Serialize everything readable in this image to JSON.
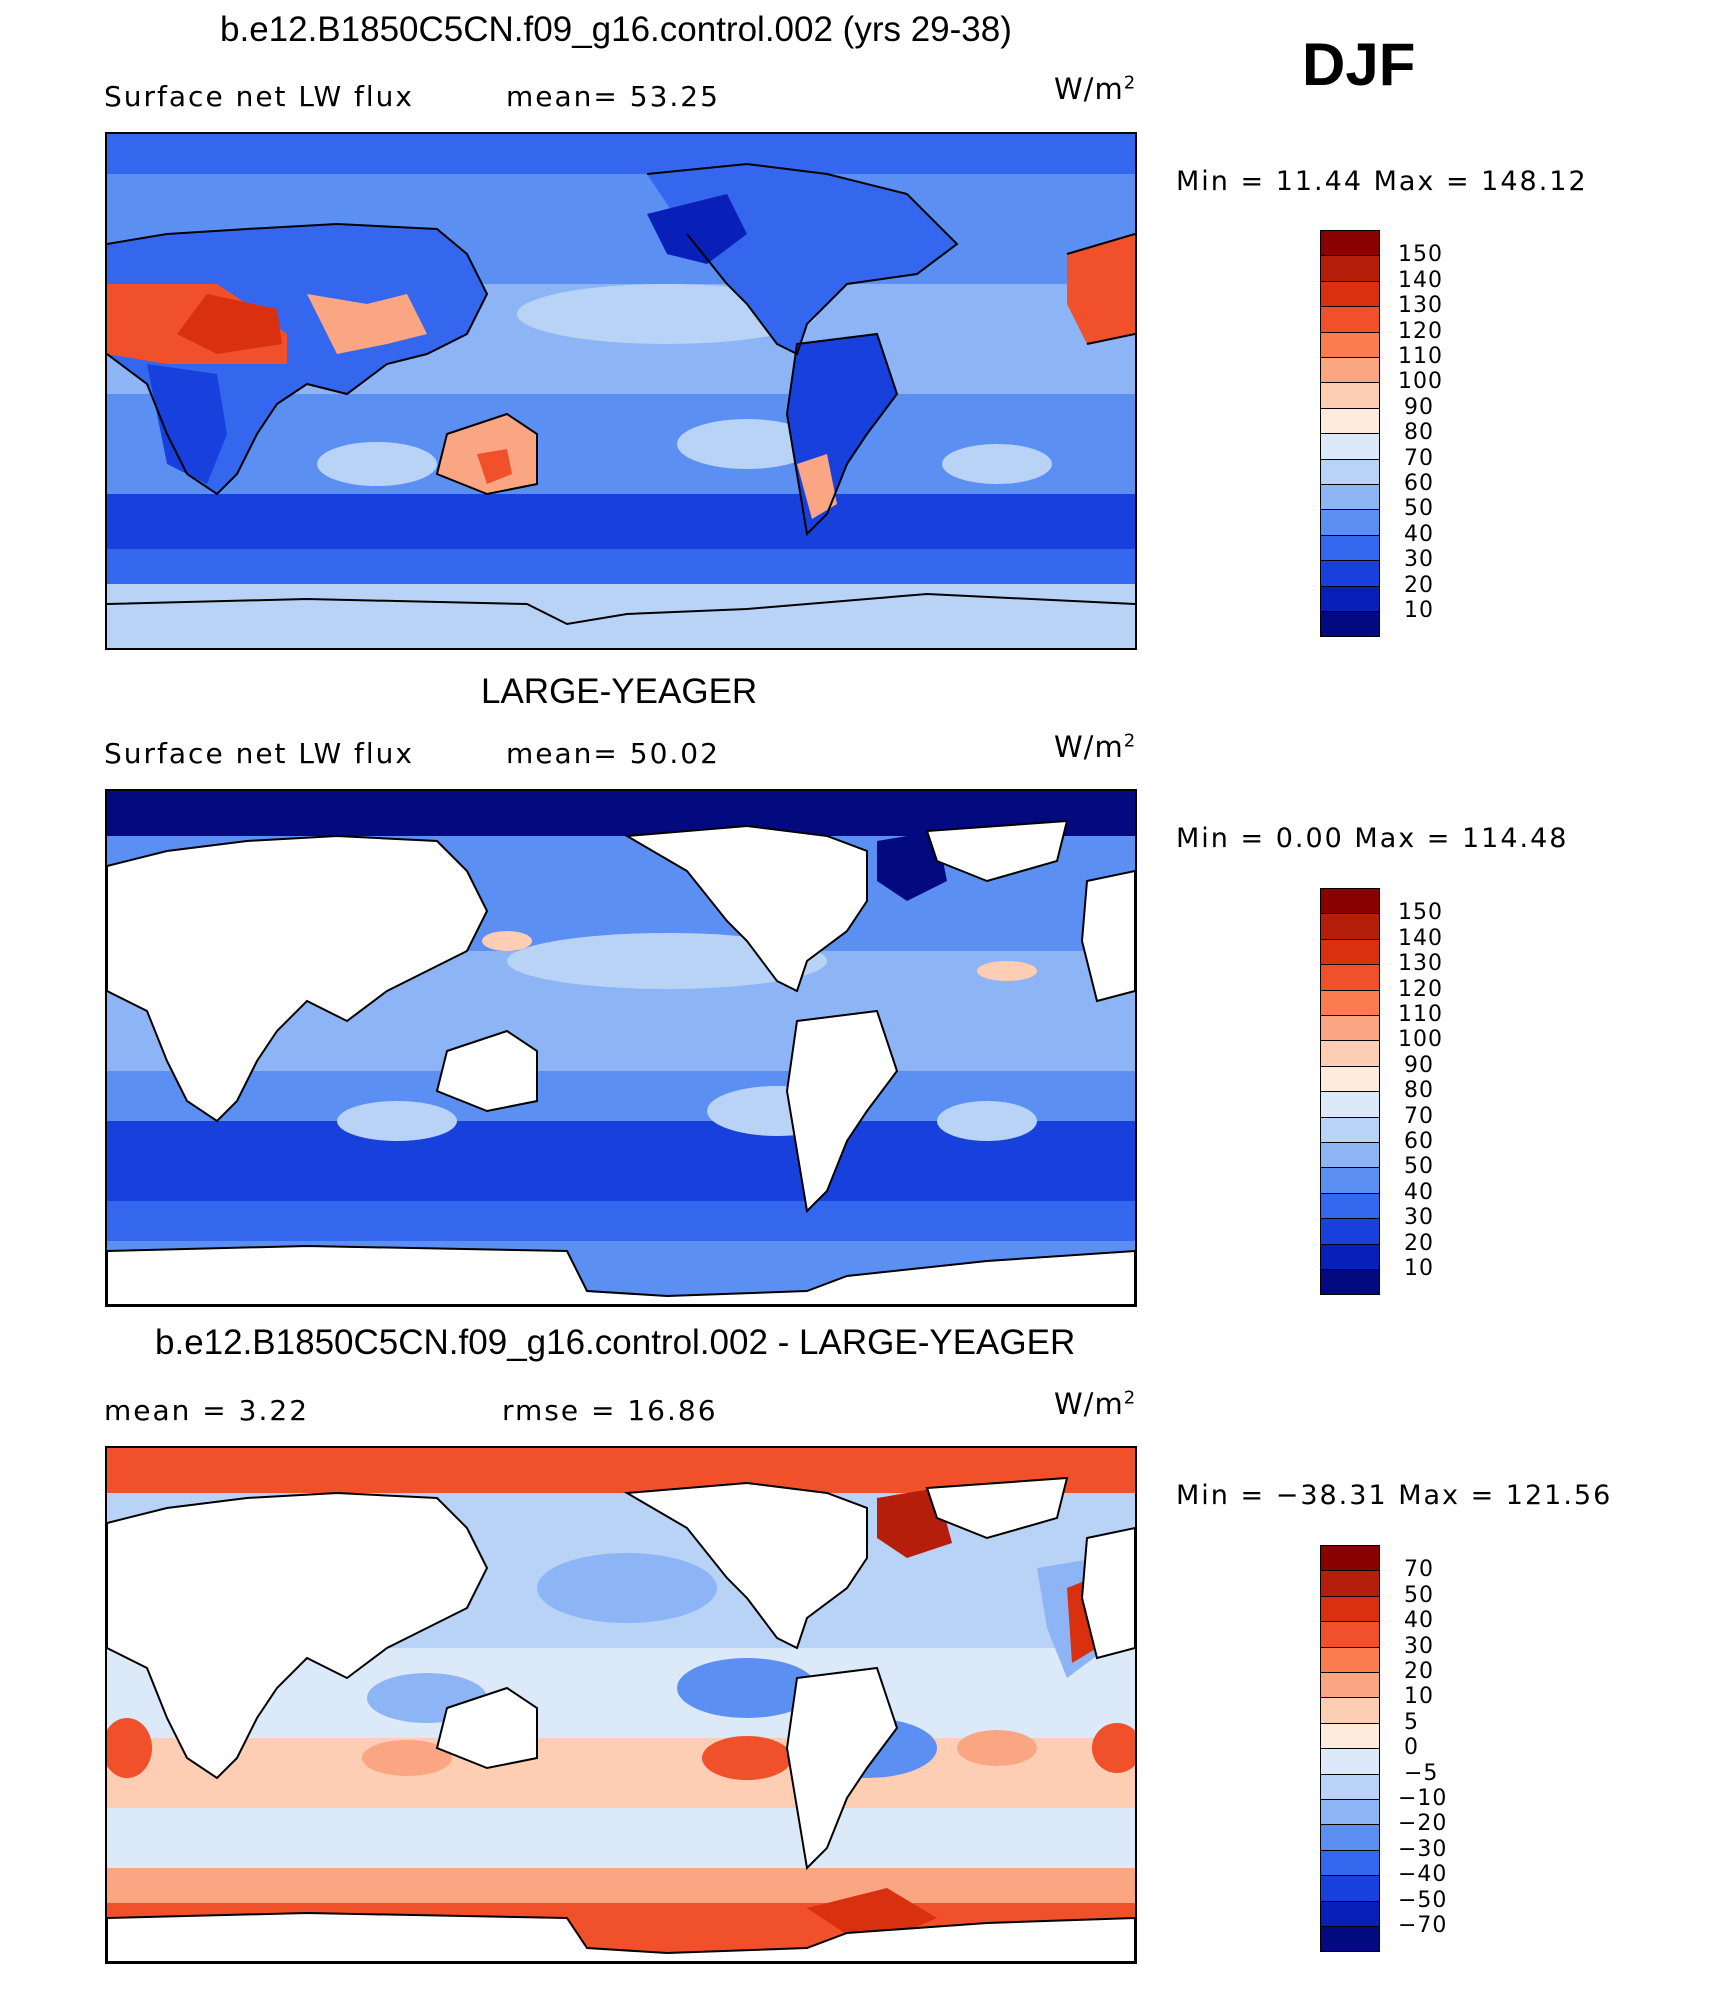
{
  "season": "DJF",
  "panels": [
    {
      "id": "model",
      "title": "b.e12.B1850C5CN.f09_g16.control.002 (yrs 29-38)",
      "left_label": "Surface net LW flux",
      "right_label": "mean=  53.25",
      "units": "W/m",
      "units_sup": "2",
      "minmax": "Min =   11.44 Max = 148.12",
      "levels": [
        "150",
        "140",
        "130",
        "120",
        "110",
        "100",
        "90",
        "80",
        "70",
        "60",
        "50",
        "40",
        "30",
        "20",
        "10"
      ],
      "colors": [
        "#8b0000",
        "#b41e0b",
        "#d9300f",
        "#f0502a",
        "#fb7d4f",
        "#fba683",
        "#fdcdb4",
        "#fdebdc",
        "#dbe9f9",
        "#b9d3f7",
        "#8db5f6",
        "#5c8ff2",
        "#3467ee",
        "#1840dc",
        "#0820b7",
        "#030a80"
      ]
    },
    {
      "id": "obs",
      "title": "LARGE-YEAGER",
      "left_label": "Surface net LW flux",
      "right_label": "mean=  50.02",
      "units": "W/m",
      "units_sup": "2",
      "minmax": "Min =   0.00 Max = 114.48",
      "levels": [
        "150",
        "140",
        "130",
        "120",
        "110",
        "100",
        "90",
        "80",
        "70",
        "60",
        "50",
        "40",
        "30",
        "20",
        "10"
      ],
      "colors": [
        "#8b0000",
        "#b41e0b",
        "#d9300f",
        "#f0502a",
        "#fb7d4f",
        "#fba683",
        "#fdcdb4",
        "#fdebdc",
        "#dbe9f9",
        "#b9d3f7",
        "#8db5f6",
        "#5c8ff2",
        "#3467ee",
        "#1840dc",
        "#0820b7",
        "#030a80"
      ]
    },
    {
      "id": "diff",
      "title": "b.e12.B1850C5CN.f09_g16.control.002 - LARGE-YEAGER",
      "left_label": "mean =    3.22",
      "right_label": "rmse =   16.86",
      "units": "W/m",
      "units_sup": "2",
      "minmax": "Min = −38.31 Max = 121.56",
      "levels": [
        "70",
        "50",
        "40",
        "30",
        "20",
        "10",
        "5",
        "0",
        "−5",
        "−10",
        "−20",
        "−30",
        "−40",
        "−50",
        "−70"
      ],
      "colors": [
        "#8b0000",
        "#b41e0b",
        "#d9300f",
        "#f0502a",
        "#fb7d4f",
        "#fba683",
        "#fdcdb4",
        "#fdebdc",
        "#dbe9f9",
        "#b9d3f7",
        "#8db5f6",
        "#5c8ff2",
        "#3467ee",
        "#1840dc",
        "#0820b7",
        "#030a80"
      ]
    }
  ]
}
